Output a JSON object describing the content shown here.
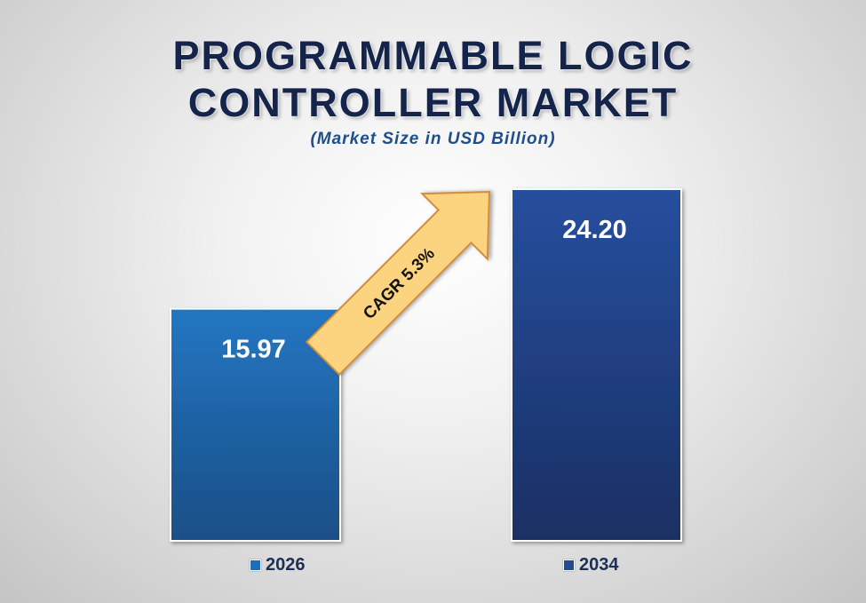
{
  "chart_data": {
    "type": "bar",
    "title_lines": [
      "PROGRAMMABLE LOGIC",
      "CONTROLLER MARKET"
    ],
    "subtitle": "(Market Size in USD Billion)",
    "categories": [
      "2026",
      "2034"
    ],
    "values": [
      15.97,
      24.2
    ],
    "value_labels": [
      "15.97",
      "24.20"
    ],
    "ylim": [
      0,
      24.2
    ],
    "grid": false,
    "legend_position": "bottom",
    "annotation": "CAGR  5.3%",
    "colors": {
      "bar_2026": "#1f6fb8",
      "bar_2034": "#234a94",
      "arrow_fill": "#fcd37f",
      "arrow_stroke": "#d08b3a",
      "title": "#14244a"
    }
  }
}
